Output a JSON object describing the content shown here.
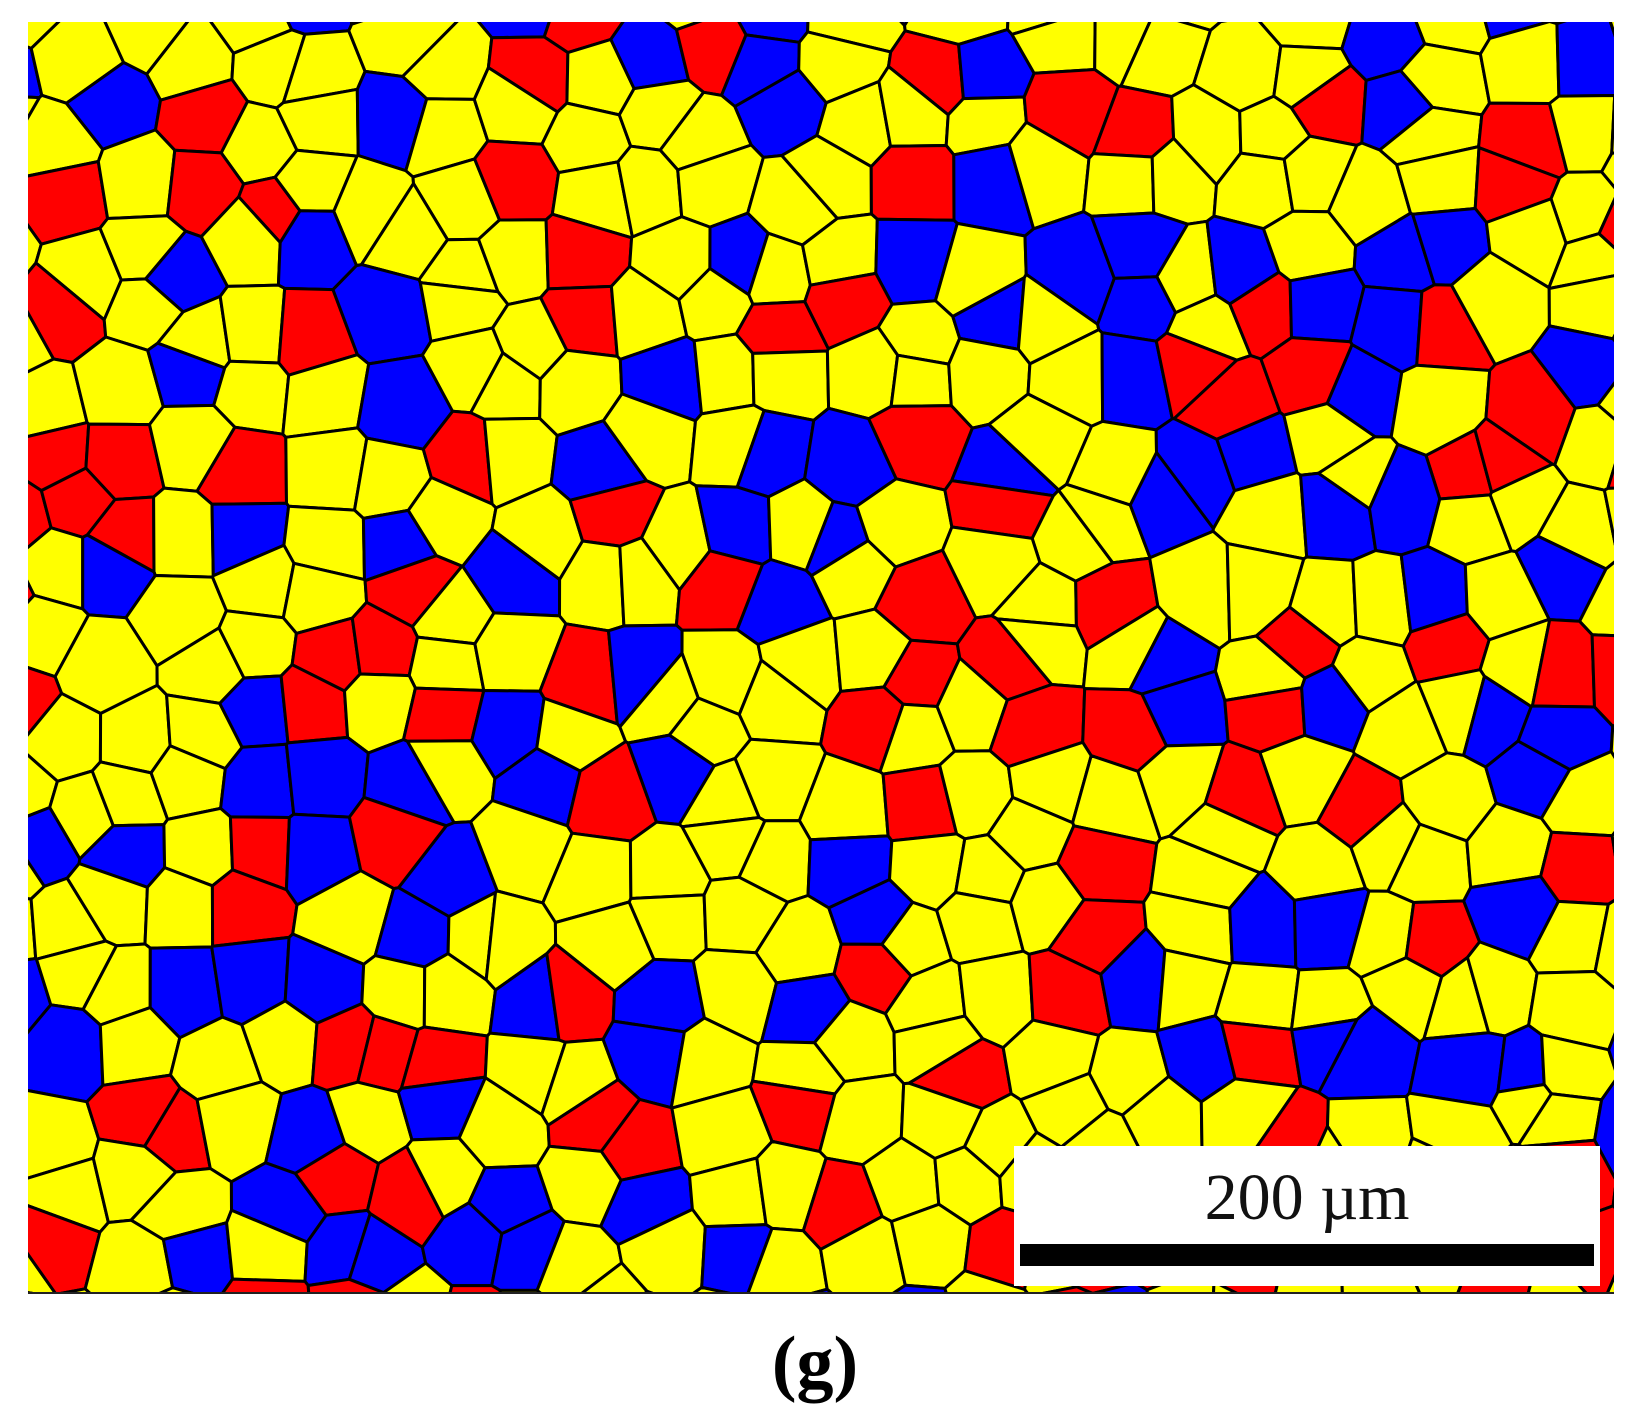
{
  "figure": {
    "scale_bar_label": "200 µm",
    "panel_label": "(g)"
  },
  "colors": {
    "yellow_grains": "#ffff00",
    "blue_grains": "#0000ff",
    "red_grains": "#ff0000",
    "grain_boundaries": "#000000"
  }
}
